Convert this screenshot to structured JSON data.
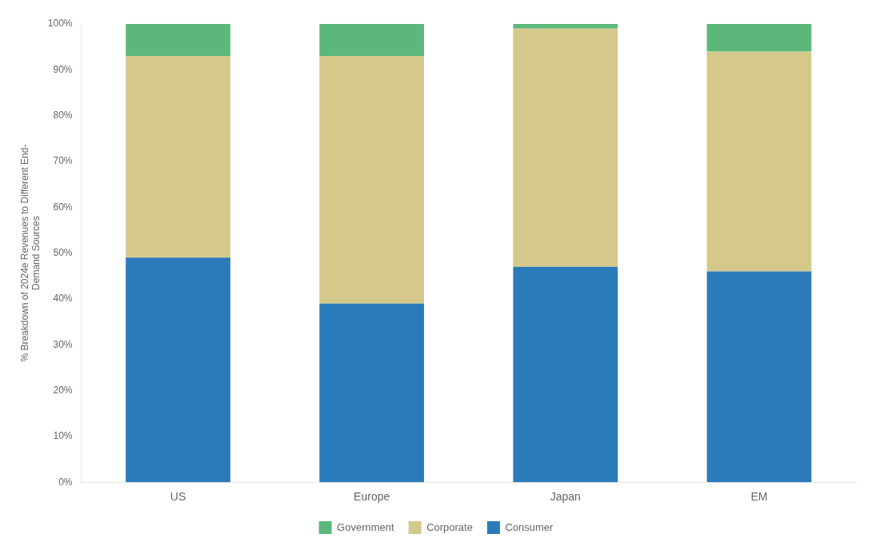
{
  "chart_data": {
    "type": "bar",
    "stacked": true,
    "categories": [
      "US",
      "Europe",
      "Japan",
      "EM"
    ],
    "series": [
      {
        "name": "Consumer",
        "color": "#2b7bba",
        "values": [
          49,
          39,
          47,
          46
        ]
      },
      {
        "name": "Corporate",
        "color": "#d4c98a",
        "values": [
          44,
          54,
          52,
          48
        ]
      },
      {
        "name": "Government",
        "color": "#5cb87a",
        "values": [
          7,
          7,
          1,
          6
        ]
      }
    ],
    "ylabel": "% Breakdown of 2024e Revenues to Different End-\nDemand Sources",
    "ylim": [
      0,
      100
    ],
    "yticks": [
      {
        "value": 0,
        "label": "0%"
      },
      {
        "value": 10,
        "label": "10%"
      },
      {
        "value": 20,
        "label": "20%"
      },
      {
        "value": 30,
        "label": "30%"
      },
      {
        "value": 40,
        "label": "40%"
      },
      {
        "value": 50,
        "label": "50%"
      },
      {
        "value": 60,
        "label": "60%"
      },
      {
        "value": 70,
        "label": "70%"
      },
      {
        "value": 80,
        "label": "80%"
      },
      {
        "value": 90,
        "label": "90%"
      },
      {
        "value": 100,
        "label": "100%"
      }
    ],
    "grid": false,
    "legend": "bottom"
  }
}
